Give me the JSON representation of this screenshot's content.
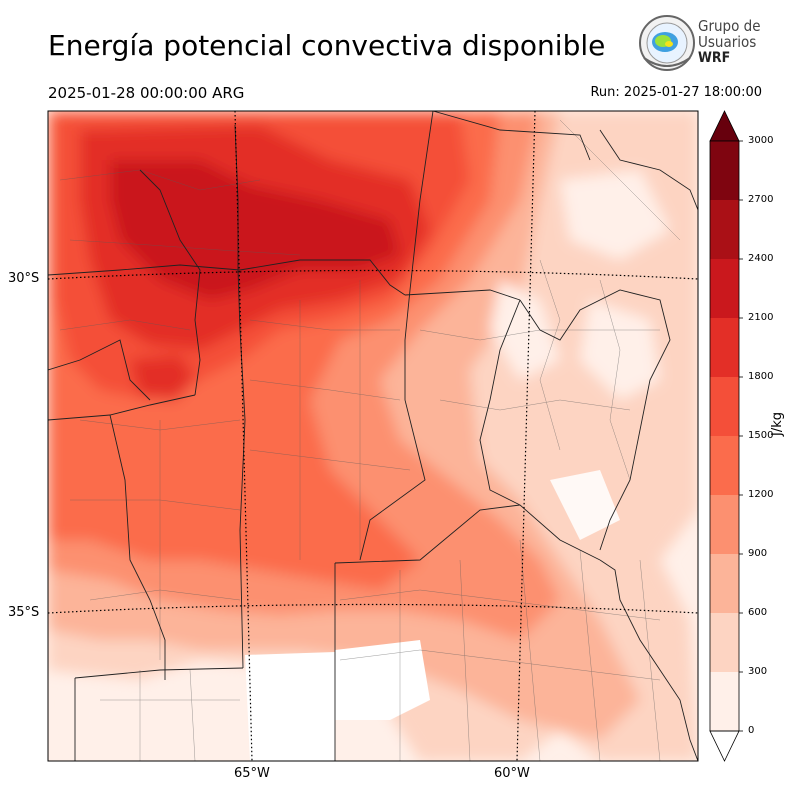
{
  "header": {
    "title": "Energía potencial convectiva disponible",
    "valid_time": "2025-01-28 00:00:00 ARG",
    "run_time": "Run: 2025-01-27 18:00:00"
  },
  "logo": {
    "line1": "Grupo de",
    "line2": "Usuarios",
    "line3": "WRF"
  },
  "map": {
    "latitude_labels": [
      "30°S",
      "35°S"
    ],
    "longitude_labels": [
      "65°W",
      "60°W"
    ]
  },
  "colorbar": {
    "unit": "J/kg",
    "ticks": [
      "0",
      "300",
      "600",
      "900",
      "1200",
      "1500",
      "1800",
      "2100",
      "2400",
      "2700",
      "3000"
    ],
    "colors": [
      "#fff0e9",
      "#fdd4c2",
      "#fcb499",
      "#fc9070",
      "#fb6c4c",
      "#f44f39",
      "#e32f27",
      "#ca181d",
      "#aa1016",
      "#7f0510"
    ],
    "extend": "both"
  }
}
